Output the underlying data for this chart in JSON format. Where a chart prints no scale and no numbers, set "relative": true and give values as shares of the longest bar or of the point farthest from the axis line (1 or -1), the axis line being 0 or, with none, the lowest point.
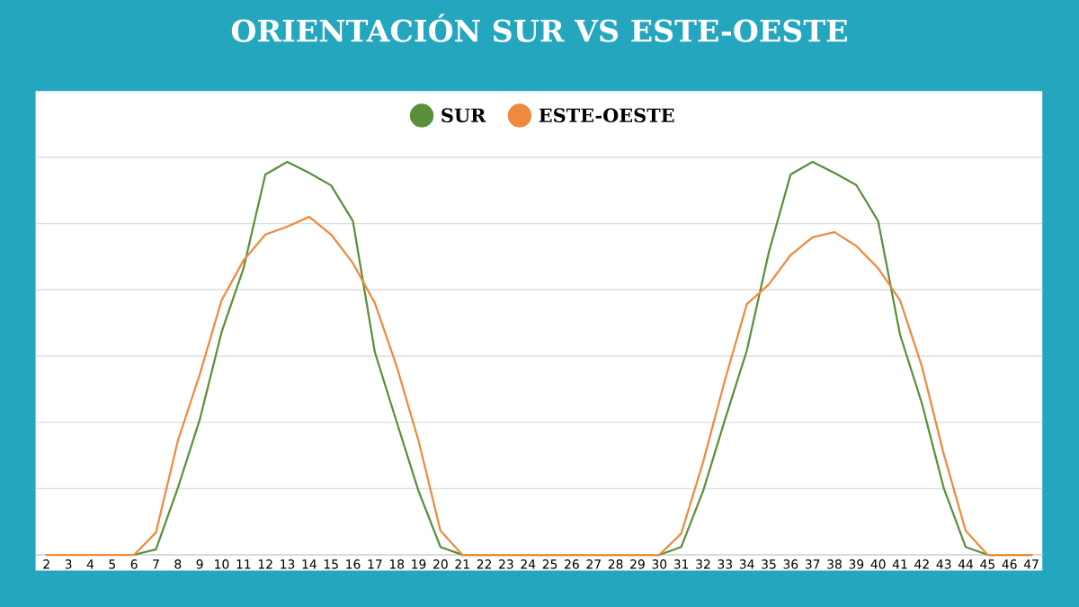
{
  "chart_data": {
    "type": "line",
    "title": "ORIENTACIÓN SUR VS ESTE-OESTE",
    "relative": true,
    "grid": "y",
    "legend": "top",
    "tick_labels": "x",
    "marker": "none",
    "line_style": "solid",
    "categories": [
      "2",
      "3",
      "4",
      "5",
      "6",
      "7",
      "8",
      "9",
      "10",
      "11",
      "12",
      "13",
      "14",
      "15",
      "16",
      "17",
      "18",
      "19",
      "20",
      "21",
      "22",
      "23",
      "24",
      "25",
      "26",
      "27",
      "28",
      "29",
      "30",
      "31",
      "32",
      "33",
      "34",
      "35",
      "36",
      "37",
      "38",
      "39",
      "40",
      "41",
      "42",
      "43",
      "44",
      "45",
      "46",
      "47"
    ],
    "series": [
      {
        "name": "SUR",
        "color": "#5a8f3c",
        "values": [
          null,
          null,
          null,
          null,
          0,
          0.014,
          0.17,
          0.344,
          0.567,
          0.729,
          0.968,
          1,
          0.972,
          0.94,
          0.849,
          0.516,
          0.338,
          0.162,
          0.02,
          0,
          0,
          0,
          0,
          0,
          0,
          0,
          0,
          0,
          0,
          0.02,
          0.162,
          0.344,
          0.52,
          0.769,
          0.968,
          1,
          0.972,
          0.941,
          0.849,
          0.56,
          0.385,
          0.169,
          0.02,
          0,
          0,
          0
        ]
      },
      {
        "name": "ESTE-OESTE",
        "color": "#ef8a3c",
        "values": [
          0,
          0,
          0,
          0,
          0,
          0.057,
          0.29,
          0.459,
          0.648,
          0.749,
          0.815,
          0.835,
          0.86,
          0.815,
          0.742,
          0.641,
          0.479,
          0.29,
          0.061,
          0,
          0,
          0,
          0,
          0,
          0,
          0,
          0,
          0,
          0,
          0.054,
          0.236,
          0.445,
          0.638,
          0.688,
          0.763,
          0.808,
          0.821,
          0.786,
          0.729,
          0.648,
          0.479,
          0.256,
          0.061,
          0,
          0,
          0
        ]
      }
    ]
  }
}
